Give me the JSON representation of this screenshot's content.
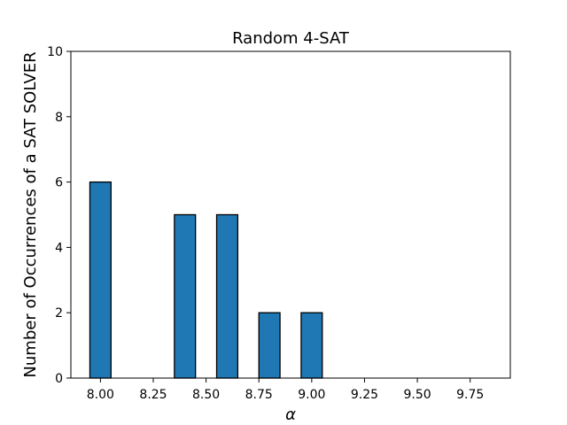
{
  "chart_data": {
    "type": "bar",
    "title": "Random 4-SAT",
    "xlabel": "α",
    "ylabel": "Number of Occurrences of a SAT SOLVER",
    "x": [
      8.0,
      8.2,
      8.4,
      8.6,
      8.8,
      9.0,
      9.2,
      9.4,
      9.6,
      9.8
    ],
    "values": [
      6,
      0,
      5,
      5,
      2,
      2,
      0,
      0,
      0,
      0
    ],
    "bar_width": 0.1,
    "xlim": [
      7.86,
      9.94
    ],
    "ylim": [
      0,
      10
    ],
    "x_ticks": [
      8.0,
      8.25,
      8.5,
      8.75,
      9.0,
      9.25,
      9.5,
      9.75
    ],
    "x_tick_labels": [
      "8.00",
      "8.25",
      "8.50",
      "8.75",
      "9.00",
      "9.25",
      "9.50",
      "9.75"
    ],
    "y_ticks": [
      0,
      2,
      4,
      6,
      8,
      10
    ],
    "y_tick_labels": [
      "0",
      "2",
      "4",
      "6",
      "8",
      "10"
    ],
    "grid": false,
    "bar_color": "#1f77b4",
    "edge_color": "#000000"
  }
}
